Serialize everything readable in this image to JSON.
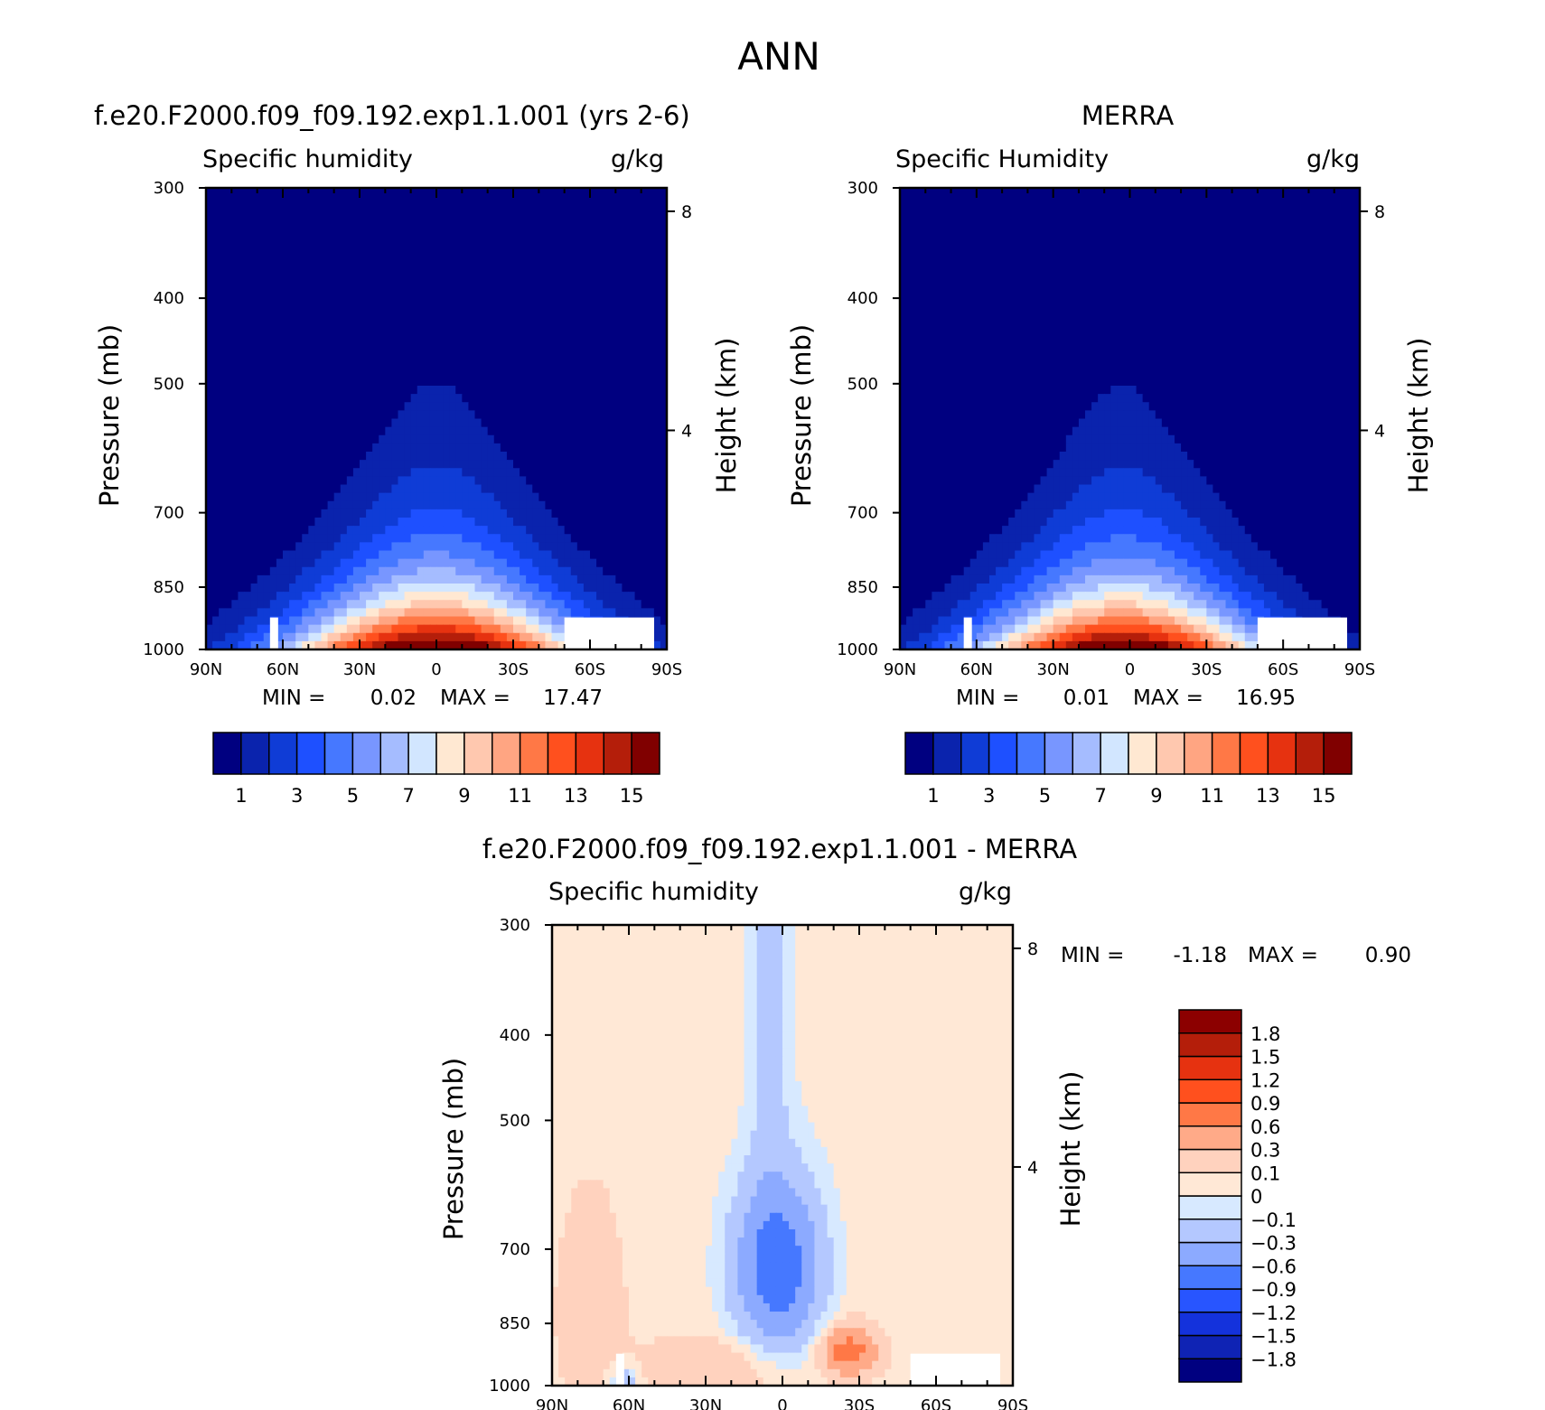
{
  "figure_title": "ANN",
  "colors": {
    "seq": [
      "#000080",
      "#0a23ad",
      "#0f3cd6",
      "#1e50ff",
      "#4678ff",
      "#7896ff",
      "#a5bcff",
      "#d2e6ff",
      "#ffe8d2",
      "#ffc8af",
      "#ffa582",
      "#ff7846",
      "#ff501e",
      "#e63210",
      "#b41e0a",
      "#800000"
    ],
    "diff": [
      "#000080",
      "#0f23b4",
      "#1432dc",
      "#2855ff",
      "#4678ff",
      "#8caaff",
      "#b4c8ff",
      "#d7e9ff",
      "#ffe8d6",
      "#ffd2be",
      "#ffaa88",
      "#ff7846",
      "#ff501e",
      "#e63210",
      "#b41e0a",
      "#8c0000"
    ]
  },
  "chart_data": [
    {
      "id": "model",
      "type": "heatmap",
      "title": "f.e20.F2000.f09_f09.192.exp1.1.001 (yrs 2-6)",
      "left_string": "Specific humidity",
      "right_string": "g/kg",
      "xlabel": "",
      "ylabel": "Pressure (mb)",
      "ylabel_right": "Height (km)",
      "x_ticks": [
        "90N",
        "60N",
        "30N",
        "0",
        "30S",
        "60S",
        "90S"
      ],
      "y_ticks": [
        "300",
        "400",
        "500",
        "700",
        "850",
        "1000"
      ],
      "y_right_ticks": [
        "8",
        "4"
      ],
      "xlim": [
        90,
        -90
      ],
      "ylim": [
        1000,
        300
      ],
      "stats": {
        "min_label": "MIN =",
        "min": "0.02",
        "max_label": "MAX =",
        "max": "17.47"
      },
      "colorbar": {
        "levels": [
          1,
          2,
          3,
          4,
          5,
          6,
          7,
          8,
          9,
          10,
          11,
          12,
          13,
          14,
          15
        ],
        "labels": [
          "1",
          "3",
          "5",
          "7",
          "9",
          "11",
          "13",
          "15"
        ]
      },
      "field": {
        "peak": 17.5,
        "center_lat": 0,
        "base_width": 60,
        "top_decay": 0.02
      }
    },
    {
      "id": "obs",
      "type": "heatmap",
      "title": "MERRA",
      "left_string": "Specific Humidity",
      "right_string": "g/kg",
      "xlabel": "",
      "ylabel": "Pressure (mb)",
      "ylabel_right": "Height (km)",
      "x_ticks": [
        "90N",
        "60N",
        "30N",
        "0",
        "30S",
        "60S",
        "90S"
      ],
      "y_ticks": [
        "300",
        "400",
        "500",
        "700",
        "850",
        "1000"
      ],
      "y_right_ticks": [
        "8",
        "4"
      ],
      "xlim": [
        90,
        -90
      ],
      "ylim": [
        1000,
        300
      ],
      "stats": {
        "min_label": "MIN =",
        "min": "0.01",
        "max_label": "MAX =",
        "max": "16.95"
      },
      "colorbar": {
        "levels": [
          1,
          2,
          3,
          4,
          5,
          6,
          7,
          8,
          9,
          10,
          11,
          12,
          13,
          14,
          15
        ],
        "labels": [
          "1",
          "3",
          "5",
          "7",
          "9",
          "11",
          "13",
          "15"
        ]
      },
      "field": {
        "peak": 17.0,
        "center_lat": 3,
        "base_width": 58,
        "top_decay": 0.02
      }
    },
    {
      "id": "diff",
      "type": "heatmap",
      "title": "f.e20.F2000.f09_f09.192.exp1.1.001 - MERRA",
      "left_string": "Specific humidity",
      "right_string": "g/kg",
      "xlabel": "",
      "ylabel": "Pressure (mb)",
      "ylabel_right": "Height (km)",
      "x_ticks": [
        "90N",
        "60N",
        "30N",
        "0",
        "30S",
        "60S",
        "90S"
      ],
      "y_ticks": [
        "300",
        "400",
        "500",
        "700",
        "850",
        "1000"
      ],
      "y_right_ticks": [
        "8",
        "4"
      ],
      "xlim": [
        90,
        -90
      ],
      "ylim": [
        1000,
        300
      ],
      "stats": {
        "min_label": "MIN =",
        "min": "-1.18",
        "max_label": "MAX =",
        "max": "0.90"
      },
      "colorbar": {
        "levels": [
          -1.8,
          -1.5,
          -1.2,
          -0.9,
          -0.6,
          -0.3,
          -0.1,
          0,
          0.1,
          0.3,
          0.6,
          0.9,
          1.2,
          1.5,
          1.8
        ],
        "labels": [
          "-1.8",
          "-1.5",
          "-1.2",
          "-0.9",
          "-0.6",
          "-0.3",
          "-0.1",
          "0",
          "0.1",
          "0.3",
          "0.6",
          "0.9",
          "1.2",
          "1.5",
          "1.8"
        ]
      }
    }
  ]
}
